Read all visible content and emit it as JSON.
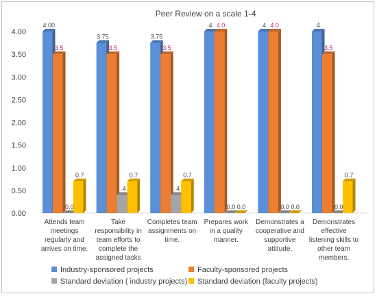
{
  "chart_data": {
    "type": "bar",
    "title": "Peer Review on a scale 1-4",
    "ylim": [
      0,
      4
    ],
    "yticks": [
      "0.00",
      "0.50",
      "1.00",
      "1.50",
      "2.00",
      "2.50",
      "3.00",
      "3.50",
      "4.00"
    ],
    "grid": false,
    "legend_position": "bottom",
    "categories": [
      [
        "Attends team",
        "meetings",
        "regularly and",
        "arrives on time."
      ],
      [
        "Take",
        "responsibility in",
        "team efforts to",
        "complete the",
        "assigned tasks"
      ],
      [
        "Completes team",
        "assignments on",
        "time."
      ],
      [
        "Prepares work",
        "in a quality",
        "manner."
      ],
      [
        "Demonstrates a",
        "cooperative and",
        "supportive",
        "attitude."
      ],
      [
        "Demonstrates",
        "effective",
        "listening skills to",
        "other team",
        "members."
      ]
    ],
    "series": [
      {
        "name": "Industry-sponsored projects",
        "color": "#5b8fd6",
        "values": [
          4.0,
          3.75,
          3.75,
          4,
          4,
          4
        ],
        "labels": [
          "4.00",
          "3.75",
          "3.75",
          "4",
          "4",
          "4"
        ],
        "label_color": "#404040"
      },
      {
        "name": "Faculty-sponsored projects",
        "color": "#ed7d31",
        "values": [
          3.5,
          3.5,
          3.5,
          4.0,
          4.0,
          3.5
        ],
        "labels": [
          "3.5",
          "3.5",
          "3.5",
          "4.0",
          "4.0",
          "3.5"
        ],
        "label_color": "#c0306a"
      },
      {
        "name": "Standard deviation ( industry projects)",
        "color": "#a5a5a5",
        "values": [
          0.0,
          0.4,
          0.4,
          0.0,
          0.0,
          0.0
        ],
        "labels": [
          "0.0",
          ".4",
          ".4",
          "0.0",
          "0.0",
          "0.0"
        ],
        "label_color": "#404040"
      },
      {
        "name": "Standard deviation (faculty projects)",
        "color": "#ffc000",
        "values": [
          0.7,
          0.7,
          0.7,
          0.0,
          0.0,
          0.7
        ],
        "labels": [
          "0.7",
          "0.7",
          "0.7",
          "0.0",
          "0.0",
          "0.7"
        ],
        "label_color": "#404040"
      }
    ]
  }
}
